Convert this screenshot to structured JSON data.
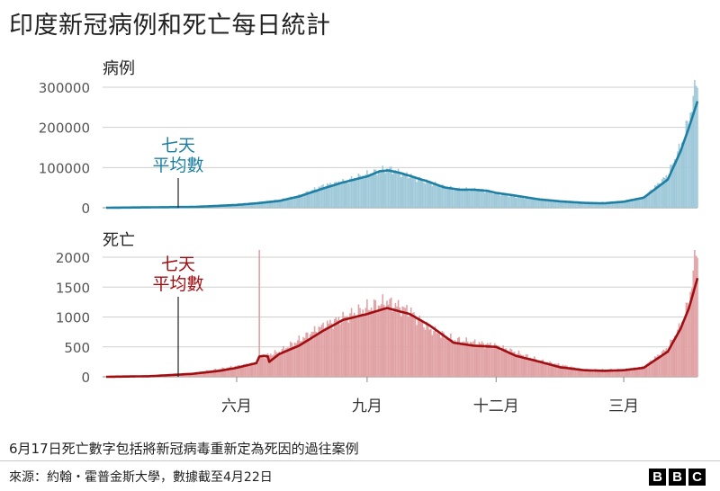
{
  "title": "印度新冠病例和死亡每日統計",
  "note": "6月17日死亡數字包括將新冠病毒重新定為死因的過往案例",
  "source": "來源：約翰・霍普金斯大學，數據截至4月22日",
  "logo": [
    "B",
    "B",
    "C"
  ],
  "colors": {
    "cases_line": "#1d7fa3",
    "cases_bar": "#9fc9d9",
    "deaths_line": "#a10e12",
    "deaths_bar": "#e0a2a4",
    "grid": "#cfcfcf",
    "axis_text": "#555555"
  },
  "chart_data": [
    {
      "type": "bar",
      "title": "病例",
      "annotation": "七天\n平均數",
      "ylim": [
        0,
        300000
      ],
      "yticks": [
        0,
        100000,
        200000,
        300000
      ],
      "ytick_labels": [
        "0",
        "100000",
        "200000",
        "300000"
      ],
      "xlabel": "",
      "ylabel": "",
      "xticks": [
        {
          "date": "2020-06-01",
          "label": "六月"
        },
        {
          "date": "2020-09-01",
          "label": "九月"
        },
        {
          "date": "2020-12-01",
          "label": "十二月"
        },
        {
          "date": "2021-03-01",
          "label": "三月"
        }
      ],
      "x_range": [
        "2020-03-01",
        "2021-04-22"
      ],
      "series": [
        {
          "kind": "seven_day_average",
          "points": [
            [
              "2020-03-01",
              0
            ],
            [
              "2020-04-01",
              1000
            ],
            [
              "2020-05-01",
              2000
            ],
            [
              "2020-05-15",
              4000
            ],
            [
              "2020-06-01",
              7000
            ],
            [
              "2020-06-15",
              11000
            ],
            [
              "2020-07-01",
              17000
            ],
            [
              "2020-07-15",
              28000
            ],
            [
              "2020-08-01",
              48000
            ],
            [
              "2020-08-15",
              63000
            ],
            [
              "2020-09-01",
              78000
            ],
            [
              "2020-09-10",
              91000
            ],
            [
              "2020-09-16",
              93000
            ],
            [
              "2020-09-25",
              86000
            ],
            [
              "2020-10-05",
              75000
            ],
            [
              "2020-10-15",
              64000
            ],
            [
              "2020-10-25",
              51000
            ],
            [
              "2020-11-05",
              45000
            ],
            [
              "2020-11-15",
              45000
            ],
            [
              "2020-11-25",
              42000
            ],
            [
              "2020-12-01",
              37000
            ],
            [
              "2020-12-15",
              30000
            ],
            [
              "2020-12-31",
              21000
            ],
            [
              "2021-01-15",
              16000
            ],
            [
              "2021-02-01",
              12000
            ],
            [
              "2021-02-15",
              11000
            ],
            [
              "2021-03-01",
              15000
            ],
            [
              "2021-03-15",
              25000
            ],
            [
              "2021-04-01",
              70000
            ],
            [
              "2021-04-10",
              140000
            ],
            [
              "2021-04-16",
              200000
            ],
            [
              "2021-04-22",
              265000
            ]
          ]
        },
        {
          "kind": "daily",
          "points": [
            [
              "2020-03-01",
              0
            ],
            [
              "2020-04-01",
              1500
            ],
            [
              "2020-05-01",
              2500
            ],
            [
              "2020-06-01",
              8000
            ],
            [
              "2020-07-01",
              19000
            ],
            [
              "2020-07-15",
              30000
            ],
            [
              "2020-08-01",
              55000
            ],
            [
              "2020-08-15",
              65000
            ],
            [
              "2020-09-01",
              83000
            ],
            [
              "2020-09-16",
              97000
            ],
            [
              "2020-10-01",
              80000
            ],
            [
              "2020-10-15",
              62000
            ],
            [
              "2020-11-01",
              46000
            ],
            [
              "2020-11-20",
              45000
            ],
            [
              "2020-12-01",
              36000
            ],
            [
              "2020-12-15",
              27000
            ],
            [
              "2021-01-01",
              19000
            ],
            [
              "2021-01-15",
              15000
            ],
            [
              "2021-02-01",
              11000
            ],
            [
              "2021-03-01",
              16000
            ],
            [
              "2021-03-15",
              26000
            ],
            [
              "2021-04-01",
              81000
            ],
            [
              "2021-04-10",
              152000
            ],
            [
              "2021-04-16",
              217000
            ],
            [
              "2021-04-21",
              315000
            ],
            [
              "2021-04-22",
              315000
            ]
          ]
        }
      ]
    },
    {
      "type": "bar",
      "title": "死亡",
      "annotation": "七天\n平均數",
      "ylim": [
        0,
        2000
      ],
      "yticks": [
        0,
        500,
        1000,
        1500,
        2000
      ],
      "ytick_labels": [
        "0",
        "500",
        "1000",
        "1500",
        "2000"
      ],
      "xlabel": "",
      "ylabel": "",
      "xticks": [
        {
          "date": "2020-06-01",
          "label": "六月"
        },
        {
          "date": "2020-09-01",
          "label": "九月"
        },
        {
          "date": "2020-12-01",
          "label": "十二月"
        },
        {
          "date": "2021-03-01",
          "label": "三月"
        }
      ],
      "x_range": [
        "2020-03-01",
        "2021-04-22"
      ],
      "series": [
        {
          "kind": "seven_day_average",
          "points": [
            [
              "2020-03-01",
              0
            ],
            [
              "2020-04-01",
              10
            ],
            [
              "2020-05-01",
              50
            ],
            [
              "2020-05-20",
              100
            ],
            [
              "2020-06-01",
              150
            ],
            [
              "2020-06-15",
              230
            ],
            [
              "2020-06-17",
              340
            ],
            [
              "2020-06-20",
              350
            ],
            [
              "2020-06-23",
              340
            ],
            [
              "2020-06-24",
              250
            ],
            [
              "2020-07-01",
              380
            ],
            [
              "2020-07-15",
              520
            ],
            [
              "2020-08-01",
              770
            ],
            [
              "2020-08-15",
              950
            ],
            [
              "2020-09-01",
              1050
            ],
            [
              "2020-09-15",
              1150
            ],
            [
              "2020-10-01",
              1050
            ],
            [
              "2020-10-15",
              860
            ],
            [
              "2020-11-01",
              570
            ],
            [
              "2020-11-15",
              520
            ],
            [
              "2020-12-01",
              500
            ],
            [
              "2020-12-15",
              350
            ],
            [
              "2021-01-01",
              250
            ],
            [
              "2021-01-15",
              160
            ],
            [
              "2021-02-01",
              110
            ],
            [
              "2021-02-15",
              100
            ],
            [
              "2021-03-01",
              110
            ],
            [
              "2021-03-15",
              150
            ],
            [
              "2021-04-01",
              420
            ],
            [
              "2021-04-10",
              800
            ],
            [
              "2021-04-16",
              1150
            ],
            [
              "2021-04-22",
              1650
            ]
          ]
        },
        {
          "kind": "daily",
          "points": [
            [
              "2020-03-01",
              0
            ],
            [
              "2020-04-01",
              15
            ],
            [
              "2020-05-01",
              60
            ],
            [
              "2020-06-01",
              180
            ],
            [
              "2020-06-16",
              240
            ],
            [
              "2020-06-17",
              2000
            ],
            [
              "2020-06-18",
              330
            ],
            [
              "2020-07-01",
              420
            ],
            [
              "2020-08-01",
              850
            ],
            [
              "2020-09-01",
              1150
            ],
            [
              "2020-09-15",
              1250
            ],
            [
              "2020-10-01",
              1100
            ],
            [
              "2020-10-15",
              800
            ],
            [
              "2020-11-01",
              620
            ],
            [
              "2020-12-01",
              520
            ],
            [
              "2021-01-01",
              270
            ],
            [
              "2021-02-01",
              120
            ],
            [
              "2021-03-01",
              120
            ],
            [
              "2021-03-15",
              170
            ],
            [
              "2021-04-01",
              480
            ],
            [
              "2021-04-10",
              850
            ],
            [
              "2021-04-16",
              1250
            ],
            [
              "2021-04-21",
              2100
            ],
            [
              "2021-04-22",
              2100
            ]
          ]
        }
      ]
    }
  ]
}
